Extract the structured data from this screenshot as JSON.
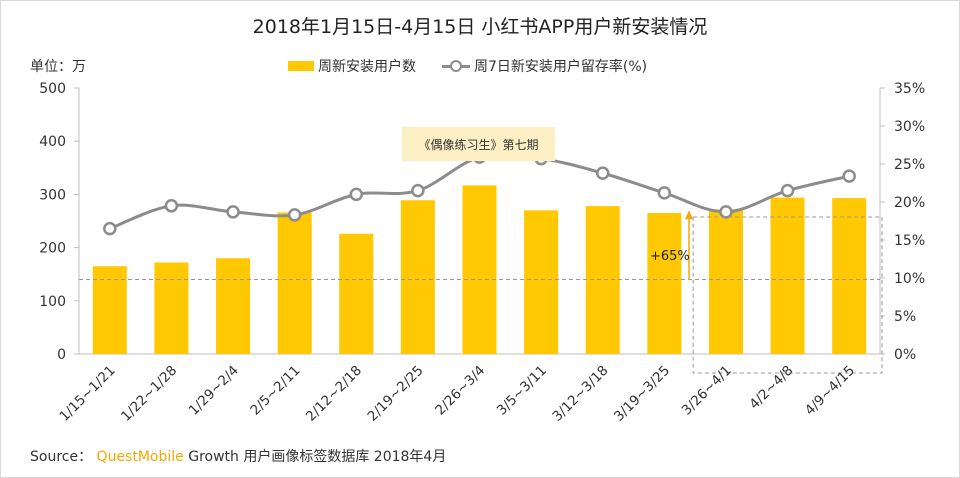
{
  "title": "2018年1月15日-4月15日 小红书APP用户新安装情况",
  "unit_label": "单位：万",
  "legend": {
    "bar_label": "周新安装用户数",
    "line_label": "周7日新安装用户留存率(%)"
  },
  "callout_text": "《偶像练习生》第七期",
  "growth_label": "+65%",
  "source": {
    "prefix": "Source：",
    "brand": "QuestMobile",
    "suffix": "Growth 用户画像标签数据库 2018年4月"
  },
  "colors": {
    "bar": "#FFC800",
    "line": "#8c8c8c",
    "reference": "#999999",
    "arrow": "#F5A800",
    "callout_bg": "#FDEFC4"
  },
  "chart_data": {
    "type": "bar",
    "categories": [
      "1/15~1/21",
      "1/22~1/28",
      "1/29~2/4",
      "2/5~2/11",
      "2/12~2/18",
      "2/19~2/25",
      "2/26~3/4",
      "3/5~3/11",
      "3/12~3/18",
      "3/19~3/25",
      "3/26~4/1",
      "4/2~4/8",
      "4/9~4/15"
    ],
    "series": [
      {
        "name": "周新安装用户数",
        "type": "bar",
        "axis": "left",
        "values": [
          165,
          172,
          180,
          266,
          226,
          289,
          317,
          270,
          278,
          265,
          272,
          294,
          293
        ]
      },
      {
        "name": "周7日新安装用户留存率(%)",
        "type": "line",
        "axis": "right",
        "values": [
          16.5,
          19.5,
          18.7,
          18.3,
          21.0,
          21.5,
          25.9,
          25.7,
          23.8,
          21.2,
          18.7,
          21.5,
          23.4
        ]
      }
    ],
    "left_axis": {
      "ylim": [
        0,
        500
      ],
      "ticks": [
        "0",
        "100",
        "200",
        "300",
        "400",
        "500"
      ]
    },
    "right_axis": {
      "ylim": [
        0,
        35
      ],
      "ticks": [
        "0%",
        "5%",
        "10%",
        "15%",
        "20%",
        "25%",
        "30%",
        "35%"
      ]
    },
    "reference_line": 140,
    "highlight_range": [
      "3/26~4/1",
      "4/9~4/15"
    ]
  }
}
